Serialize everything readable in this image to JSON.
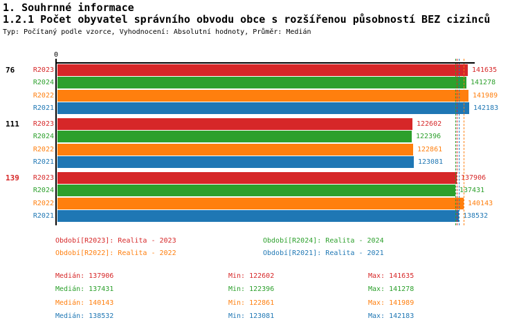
{
  "page": {
    "title1": "1. Souhrnné informace",
    "title2": "1.2.1 Počet obyvatel správního obvodu obce s rozšířenou působností BEZ cizinců",
    "subtitle": "Typ: Počítaný podle vzorce, Vyhodnocení: Absolutní hodnoty, Průměr: Medián"
  },
  "colors": {
    "r2023": "#d62728",
    "r2024": "#2ca02c",
    "r2022": "#ff7f0e",
    "r2021": "#1f77b4",
    "axis": "#000000",
    "highlight_category": "#d62728"
  },
  "chart_data": {
    "type": "bar",
    "orientation": "horizontal",
    "value_axis": {
      "zero_label": "0",
      "min": 0,
      "visible_ticks": [
        "0"
      ]
    },
    "categories": [
      "76",
      "111",
      "139"
    ],
    "category_colors": [
      "#000000",
      "#000000",
      "#d62728"
    ],
    "series": [
      {
        "name": "R2023",
        "color": "#d62728",
        "values": [
          141635,
          122602,
          137906
        ],
        "median": 137906,
        "min": 122602,
        "max": 141635
      },
      {
        "name": "R2024",
        "color": "#2ca02c",
        "values": [
          141278,
          122396,
          137431
        ],
        "median": 137431,
        "min": 122396,
        "max": 141278
      },
      {
        "name": "R2022",
        "color": "#ff7f0e",
        "values": [
          141989,
          122861,
          140143
        ],
        "median": 140143,
        "min": 122861,
        "max": 141989
      },
      {
        "name": "R2021",
        "color": "#1f77b4",
        "values": [
          142183,
          123081,
          138532
        ],
        "median": 138532,
        "min": 123081,
        "max": 142183
      }
    ],
    "median_lines": [
      {
        "series": "R2023",
        "value": 137906,
        "color": "#d62728"
      },
      {
        "series": "R2024",
        "value": 137431,
        "color": "#2ca02c"
      },
      {
        "series": "R2022",
        "value": 140143,
        "color": "#ff7f0e"
      },
      {
        "series": "R2021",
        "value": 138532,
        "color": "#1f77b4"
      }
    ],
    "legend_position": "bottom",
    "grid": false
  },
  "legend": [
    {
      "label": "Období[R2023]: Realita - 2023",
      "color": "#d62728"
    },
    {
      "label": "Období[R2024]: Realita - 2024",
      "color": "#2ca02c"
    },
    {
      "label": "Období[R2022]: Realita - 2022",
      "color": "#ff7f0e"
    },
    {
      "label": "Období[R2021]: Realita - 2021",
      "color": "#1f77b4"
    }
  ],
  "stats": [
    {
      "median": "Medián: 137906",
      "min": "Min: 122602",
      "max": "Max: 141635",
      "color": "#d62728"
    },
    {
      "median": "Medián: 137431",
      "min": "Min: 122396",
      "max": "Max: 141278",
      "color": "#2ca02c"
    },
    {
      "median": "Medián: 140143",
      "min": "Min: 122861",
      "max": "Max: 141989",
      "color": "#ff7f0e"
    },
    {
      "median": "Medián: 138532",
      "min": "Min: 123081",
      "max": "Max: 142183",
      "color": "#1f77b4"
    }
  ]
}
